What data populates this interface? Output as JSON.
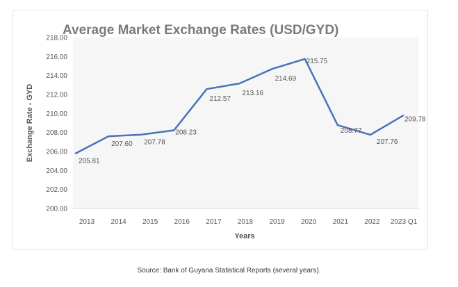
{
  "chart_data": {
    "type": "line",
    "title": "Average Market Exchange Rates (USD/GYD)",
    "xlabel": "Years",
    "ylabel": "Exchange Rate - GYD",
    "ylim": [
      200,
      218
    ],
    "yticks": [
      200,
      202,
      204,
      206,
      208,
      210,
      212,
      214,
      216,
      218
    ],
    "ytick_labels": [
      "200.00",
      "202.00",
      "204.00",
      "206.00",
      "208.00",
      "210.00",
      "212.00",
      "214.00",
      "216.00",
      "218.00"
    ],
    "categories": [
      "2013",
      "2014",
      "2015",
      "2016",
      "2017",
      "2018",
      "2019",
      "2020",
      "2021",
      "2022",
      "2023 Q1"
    ],
    "series": [
      {
        "values": [
          205.81,
          207.6,
          207.78,
          208.23,
          212.57,
          213.16,
          214.69,
          215.75,
          208.77,
          207.76,
          209.78
        ],
        "labels": [
          "205.81",
          "207.60",
          "207.78",
          "208.23",
          "212.57",
          "213.16",
          "214.69",
          "215.75",
          "208.77",
          "207.76",
          "209.78"
        ],
        "color": "#4a72b8"
      }
    ],
    "grid": false,
    "plot_background": "#f6f6f6"
  },
  "source": "Source: Bank of Guyana Statistical Reports (several years)."
}
